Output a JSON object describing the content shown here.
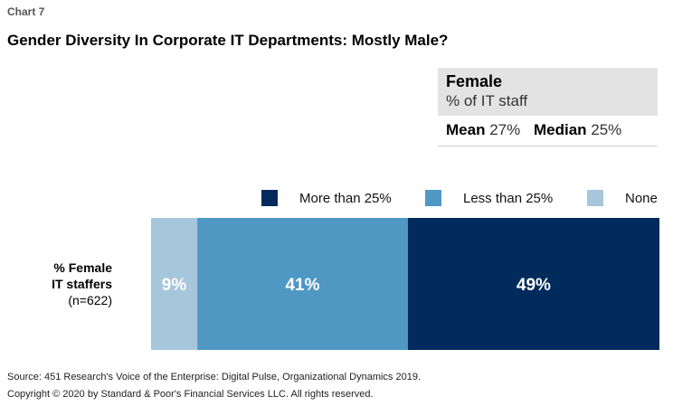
{
  "chart_label": "Chart 7",
  "title": "Gender Diversity In Corporate IT Departments: Mostly Male?",
  "stats_box": {
    "title": "Female",
    "subtitle": "% of IT staff",
    "mean_label": "Mean",
    "mean_value": "27%",
    "median_label": "Median",
    "median_value": "25%"
  },
  "chart_data": {
    "type": "bar",
    "orientation": "horizontal-stacked",
    "categories": [
      "% Female IT staffers (n=622)"
    ],
    "category_label_lines": [
      "% Female",
      "IT staffers",
      "(n=622)"
    ],
    "series": [
      {
        "name": "None",
        "values": [
          9
        ],
        "label": "9%",
        "color": "#a6c6dc"
      },
      {
        "name": "Less than 25%",
        "values": [
          41
        ],
        "label": "41%",
        "color": "#4f98c4"
      },
      {
        "name": "More than 25%",
        "values": [
          49
        ],
        "label": "49%",
        "color": "#002b5c"
      }
    ],
    "legend_order": [
      "More than 25%",
      "Less than 25%",
      "None"
    ],
    "legend_placement": "top-right",
    "xlim": [
      0,
      99
    ],
    "grid": false
  },
  "footer": {
    "source": "Source: 451 Research's Voice of the Enterprise: Digital Pulse, Organizational Dynamics 2019.",
    "copyright": "Copyright © 2020 by Standard & Poor's Financial Services LLC. All rights reserved."
  }
}
